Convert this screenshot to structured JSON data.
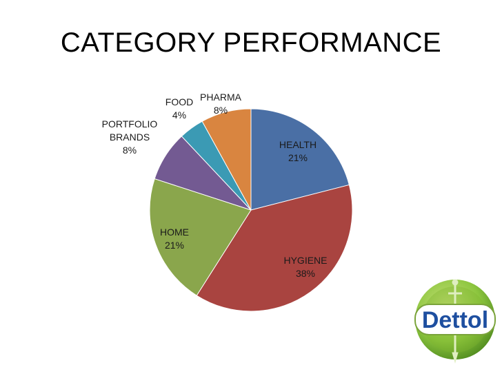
{
  "slide": {
    "title": "CATEGORY PERFORMANCE"
  },
  "chart_data": {
    "type": "pie",
    "title": "",
    "slices": [
      {
        "label": "HEALTH",
        "value": 21,
        "value_label": "21%",
        "color": "#4a6fa5"
      },
      {
        "label": "HYGIENE",
        "value": 38,
        "value_label": "38%",
        "color": "#a94440"
      },
      {
        "label": "HOME",
        "value": 21,
        "value_label": "21%",
        "color": "#8aa64c"
      },
      {
        "label": "PORTFOLIO BRANDS",
        "label_lines": [
          "PORTFOLIO",
          "BRANDS"
        ],
        "value": 8,
        "value_label": "8%",
        "color": "#735a92"
      },
      {
        "label": "FOOD",
        "value": 4,
        "value_label": "4%",
        "color": "#3b9ab4"
      },
      {
        "label": "PHARMA",
        "value": 8,
        "value_label": "8%",
        "color": "#d98540"
      }
    ],
    "start_angle": "12 o'clock",
    "direction": "clockwise",
    "legend": "none"
  },
  "logo": {
    "text": "Dettol",
    "colors": {
      "ring": "#8dc63f",
      "badge": "#ffffff",
      "text": "#1e4fa0",
      "sword": "#7aa33a"
    }
  }
}
